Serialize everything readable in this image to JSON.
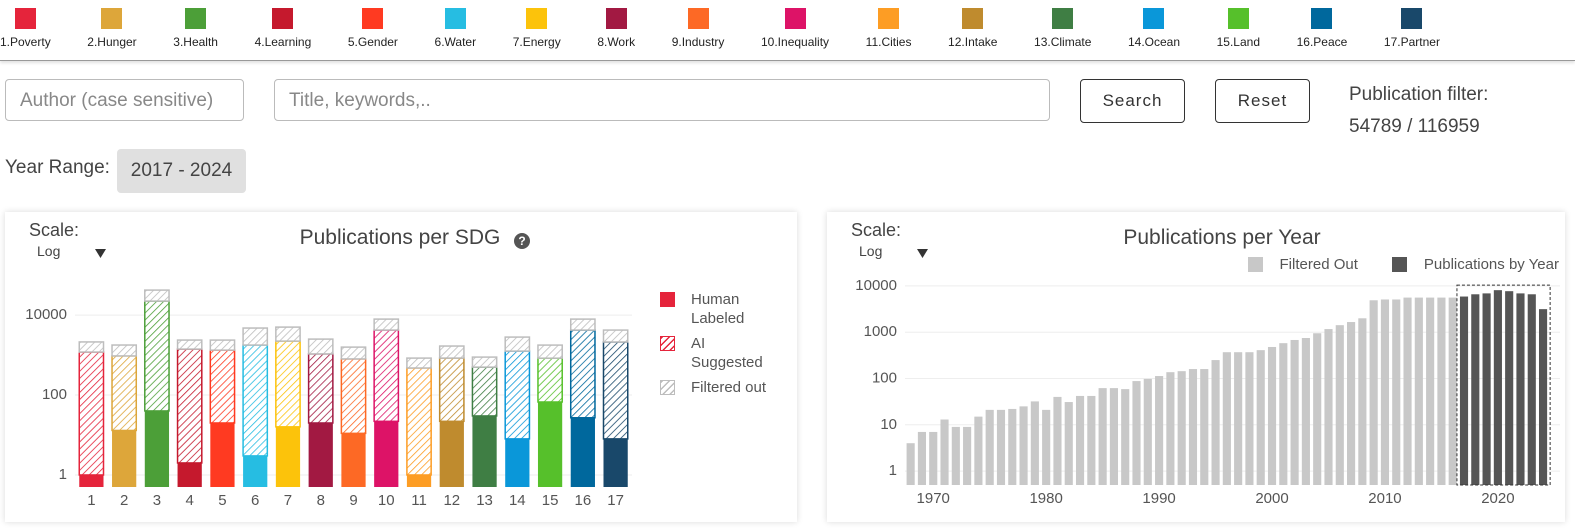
{
  "sdg_goals": [
    "1.Poverty",
    "2.Hunger",
    "3.Health",
    "4.Learning",
    "5.Gender",
    "6.Water",
    "7.Energy",
    "8.Work",
    "9.Industry",
    "10.Inequality",
    "11.Cities",
    "12.Intake",
    "13.Climate",
    "14.Ocean",
    "15.Land",
    "16.Peace",
    "17.Partner"
  ],
  "search": {
    "author_placeholder": "Author (case sensitive)",
    "title_placeholder": "Title, keywords,..",
    "search_button": "Search",
    "reset_button": "Reset",
    "filter_label": "Publication filter:",
    "filter_count": "54789 / 116959"
  },
  "year_range": {
    "label": "Year Range:",
    "value": "2017 - 2024"
  },
  "chart_data": [
    {
      "type": "bar",
      "stacked": true,
      "title": "Publications per SDG",
      "help": "?",
      "scale_label": "Scale:",
      "scale": "Log",
      "log": true,
      "grid": true,
      "legend": "right",
      "categories": [
        "1",
        "2",
        "3",
        "4",
        "5",
        "6",
        "7",
        "8",
        "9",
        "10",
        "11",
        "12",
        "13",
        "14",
        "15",
        "16",
        "17"
      ],
      "colors": [
        "#e5243b",
        "#dda63a",
        "#4c9f38",
        "#c5192d",
        "#ff3a21",
        "#26bde2",
        "#fcc30b",
        "#a21942",
        "#fd6925",
        "#dd1367",
        "#fd9d24",
        "#bf8b2e",
        "#3f7e44",
        "#0a97d9",
        "#56c02b",
        "#00689d",
        "#19486a"
      ],
      "series": [
        {
          "name": "Human Labeled",
          "color": "#e5243b",
          "pattern": "solid",
          "category_colors": true,
          "values": [
            1,
            13,
            40,
            2,
            20,
            3,
            16,
            20,
            11,
            22,
            1,
            22,
            30,
            8,
            67,
            27,
            8
          ]
        },
        {
          "name": "AI Suggested",
          "color": "#e5243b",
          "pattern": "hatch",
          "category_colors": true,
          "values": [
            1190,
            940,
            22400,
            1410,
            1310,
            1780,
            2220,
            1050,
            790,
            4200,
            474,
            820,
            470,
            1250,
            770,
            4190,
            2120
          ]
        },
        {
          "name": "Filtered out",
          "color": "#bdbdbd",
          "pattern": "hatch",
          "category_colors": false,
          "values": [
            940,
            830,
            19800,
            960,
            1040,
            2960,
            2770,
            1440,
            780,
            3720,
            365,
            840,
            390,
            1560,
            940,
            3720,
            2090
          ]
        }
      ],
      "ylim": [
        0.5,
        60000
      ],
      "yticks": [
        1,
        100,
        10000
      ]
    },
    {
      "type": "bar",
      "title": "Publications per Year",
      "scale_label": "Scale:",
      "scale": "Log",
      "log": true,
      "grid": true,
      "legend": "top-right",
      "x": [
        1968,
        1969,
        1970,
        1971,
        1972,
        1973,
        1974,
        1975,
        1976,
        1977,
        1978,
        1979,
        1980,
        1981,
        1982,
        1983,
        1984,
        1985,
        1986,
        1987,
        1988,
        1989,
        1990,
        1991,
        1992,
        1993,
        1994,
        1995,
        1996,
        1997,
        1998,
        1999,
        2000,
        2001,
        2002,
        2003,
        2004,
        2005,
        2006,
        2007,
        2008,
        2009,
        2010,
        2011,
        2012,
        2013,
        2014,
        2015,
        2016,
        2017,
        2018,
        2019,
        2020,
        2021,
        2022,
        2023,
        2024
      ],
      "series": [
        {
          "name": "Filtered Out",
          "color": "#c8c8c8",
          "values": [
            4,
            7,
            7,
            13,
            9,
            9,
            15,
            21,
            21,
            22,
            25,
            32,
            21,
            40,
            31,
            42,
            42,
            62,
            62,
            59,
            88,
            98,
            113,
            137,
            144,
            160,
            160,
            250,
            370,
            370,
            370,
            410,
            480,
            580,
            680,
            750,
            950,
            1170,
            1420,
            1660,
            2000,
            4900,
            5100,
            5100,
            5600,
            5600,
            5600,
            5600,
            5600,
            null,
            null,
            null,
            null,
            null,
            null,
            null,
            null
          ]
        },
        {
          "name": "Publications by Year",
          "color": "#555555",
          "highlight": true,
          "values": [
            null,
            null,
            null,
            null,
            null,
            null,
            null,
            null,
            null,
            null,
            null,
            null,
            null,
            null,
            null,
            null,
            null,
            null,
            null,
            null,
            null,
            null,
            null,
            null,
            null,
            null,
            null,
            null,
            null,
            null,
            null,
            null,
            null,
            null,
            null,
            null,
            null,
            null,
            null,
            null,
            null,
            null,
            null,
            null,
            null,
            null,
            null,
            null,
            null,
            5900,
            6600,
            6900,
            8100,
            7700,
            6900,
            6600,
            3150
          ]
        }
      ],
      "xlim": [
        1967.5,
        2025.5
      ],
      "xticks": [
        1970,
        1980,
        1990,
        2000,
        2010,
        2020
      ],
      "ylim": [
        0.5,
        20000
      ],
      "yticks": [
        1,
        10,
        100,
        1000,
        10000
      ]
    }
  ]
}
